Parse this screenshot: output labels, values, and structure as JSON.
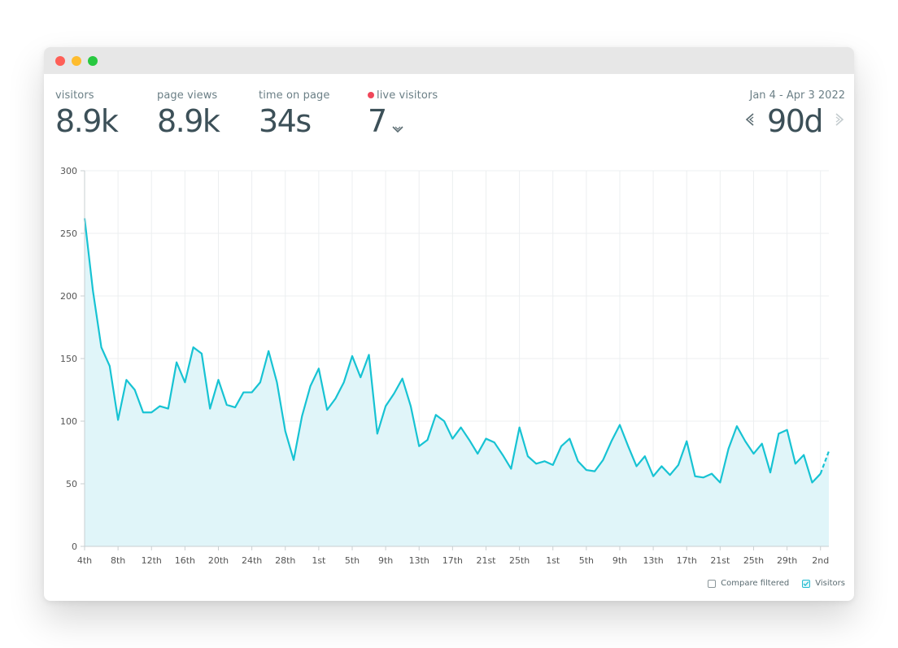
{
  "stats": {
    "visitors": {
      "label": "visitors",
      "value": "8.9k"
    },
    "page_views": {
      "label": "page views",
      "value": "8.9k"
    },
    "time_on_page": {
      "label": "time on page",
      "value": "34s"
    },
    "live_visitors": {
      "label": "live visitors",
      "value": "7"
    }
  },
  "range": {
    "label": "Jan 4 - Apr 3 2022",
    "value": "90d"
  },
  "legend": {
    "compare_label": "Compare filtered",
    "compare_checked": false,
    "visitors_label": "Visitors",
    "visitors_checked": true
  },
  "colors": {
    "line": "#17c3d3",
    "fill": "#e0f5f9",
    "live_dot": "#f0475a",
    "text": "#3c5058"
  },
  "icons": {
    "prev": "chevron-left-icon",
    "next": "chevron-right-icon",
    "dropdown": "chevron-down-icon"
  },
  "chart_data": {
    "type": "area",
    "ylim": [
      0,
      300
    ],
    "yticks": [
      0,
      50,
      100,
      150,
      200,
      250,
      300
    ],
    "grid": true,
    "xtick_labels": [
      "4th",
      "8th",
      "12th",
      "16th",
      "20th",
      "24th",
      "28th",
      "1st",
      "5th",
      "9th",
      "13th",
      "17th",
      "21st",
      "25th",
      "1st",
      "5th",
      "9th",
      "13th",
      "17th",
      "21st",
      "25th",
      "29th",
      "2nd"
    ],
    "xtick_every": 4,
    "x": [
      "Jan 4",
      "Jan 5",
      "Jan 6",
      "Jan 7",
      "Jan 8",
      "Jan 9",
      "Jan 10",
      "Jan 11",
      "Jan 12",
      "Jan 13",
      "Jan 14",
      "Jan 15",
      "Jan 16",
      "Jan 17",
      "Jan 18",
      "Jan 19",
      "Jan 20",
      "Jan 21",
      "Jan 22",
      "Jan 23",
      "Jan 24",
      "Jan 25",
      "Jan 26",
      "Jan 27",
      "Jan 28",
      "Jan 29",
      "Jan 30",
      "Jan 31",
      "Feb 1",
      "Feb 2",
      "Feb 3",
      "Feb 4",
      "Feb 5",
      "Feb 6",
      "Feb 7",
      "Feb 8",
      "Feb 9",
      "Feb 10",
      "Feb 11",
      "Feb 12",
      "Feb 13",
      "Feb 14",
      "Feb 15",
      "Feb 16",
      "Feb 17",
      "Feb 18",
      "Feb 19",
      "Feb 20",
      "Feb 21",
      "Feb 22",
      "Feb 23",
      "Feb 24",
      "Feb 25",
      "Feb 26",
      "Feb 27",
      "Feb 28",
      "Mar 1",
      "Mar 2",
      "Mar 3",
      "Mar 4",
      "Mar 5",
      "Mar 6",
      "Mar 7",
      "Mar 8",
      "Mar 9",
      "Mar 10",
      "Mar 11",
      "Mar 12",
      "Mar 13",
      "Mar 14",
      "Mar 15",
      "Mar 16",
      "Mar 17",
      "Mar 18",
      "Mar 19",
      "Mar 20",
      "Mar 21",
      "Mar 22",
      "Mar 23",
      "Mar 24",
      "Mar 25",
      "Mar 26",
      "Mar 27",
      "Mar 28",
      "Mar 29",
      "Mar 30",
      "Mar 31",
      "Apr 1",
      "Apr 2",
      "Apr 3"
    ],
    "series": [
      {
        "name": "Visitors",
        "values": [
          262,
          204,
          159,
          144,
          101,
          133,
          125,
          107,
          107,
          112,
          110,
          147,
          131,
          159,
          154,
          110,
          133,
          113,
          111,
          123,
          123,
          131,
          156,
          131,
          92,
          69,
          104,
          128,
          142,
          109,
          118,
          131,
          152,
          135,
          153,
          90,
          112,
          122,
          134,
          112,
          80,
          85,
          105,
          100,
          86,
          95,
          85,
          74,
          86,
          83,
          73,
          62,
          95,
          72,
          66,
          68,
          65,
          80,
          86,
          68,
          61,
          60,
          69,
          84,
          97,
          80,
          64,
          72,
          56,
          64,
          57,
          65,
          84,
          56,
          55,
          58,
          51,
          78,
          96,
          84,
          74,
          82,
          59,
          90,
          93,
          66,
          73,
          51,
          58,
          76
        ],
        "dashed_last_segment": true
      }
    ]
  }
}
